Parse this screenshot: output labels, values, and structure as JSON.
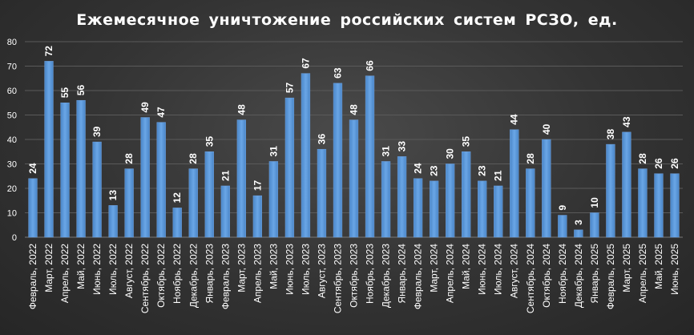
{
  "chart_data": {
    "type": "bar",
    "title": "Ежемесячное уничтожение российских систем РСЗО, ед.",
    "xlabel": "",
    "ylabel": "",
    "ylim": [
      0,
      80
    ],
    "yticks": [
      0,
      10,
      20,
      30,
      40,
      50,
      60,
      70,
      80
    ],
    "grid": true,
    "legend": "none",
    "bar_color": "#5b9bd5",
    "categories": [
      "Февраль, 2022",
      "Март, 2022",
      "Апрель, 2022",
      "Май, 2022",
      "Июнь, 2022",
      "Июль, 2022",
      "Август, 2022",
      "Сентябрь, 2022",
      "Октябрь, 2022",
      "Ноябрь, 2022",
      "Декабрь, 2022",
      "Январь, 2023",
      "Февраль, 2023",
      "Март, 2023",
      "Апрель, 2023",
      "Май, 2023",
      "Июнь, 2023",
      "Июль, 2023",
      "Август, 2023",
      "Сентябрь, 2023",
      "Октябрь, 2023",
      "Ноябрь, 2023",
      "Декабрь, 2023",
      "Январь, 2024",
      "Февраль, 2024",
      "Март, 2024",
      "Апрель, 2024",
      "Май, 2024",
      "Июнь, 2024",
      "Июль, 2024",
      "Август, 2024",
      "Сентябрь, 2024",
      "Октябрь, 2024",
      "Ноябрь, 2024",
      "Декабрь, 2024",
      "Январь, 2025",
      "Февраль, 2025",
      "Март, 2025",
      "Апрель, 2025",
      "Май, 2025",
      "Июнь, 2025"
    ],
    "values": [
      24,
      72,
      55,
      56,
      39,
      13,
      28,
      49,
      47,
      12,
      28,
      35,
      21,
      48,
      17,
      31,
      57,
      67,
      36,
      63,
      48,
      66,
      31,
      33,
      24,
      23,
      30,
      35,
      23,
      21,
      44,
      28,
      40,
      9,
      3,
      10,
      38,
      43,
      28,
      26,
      26
    ]
  }
}
